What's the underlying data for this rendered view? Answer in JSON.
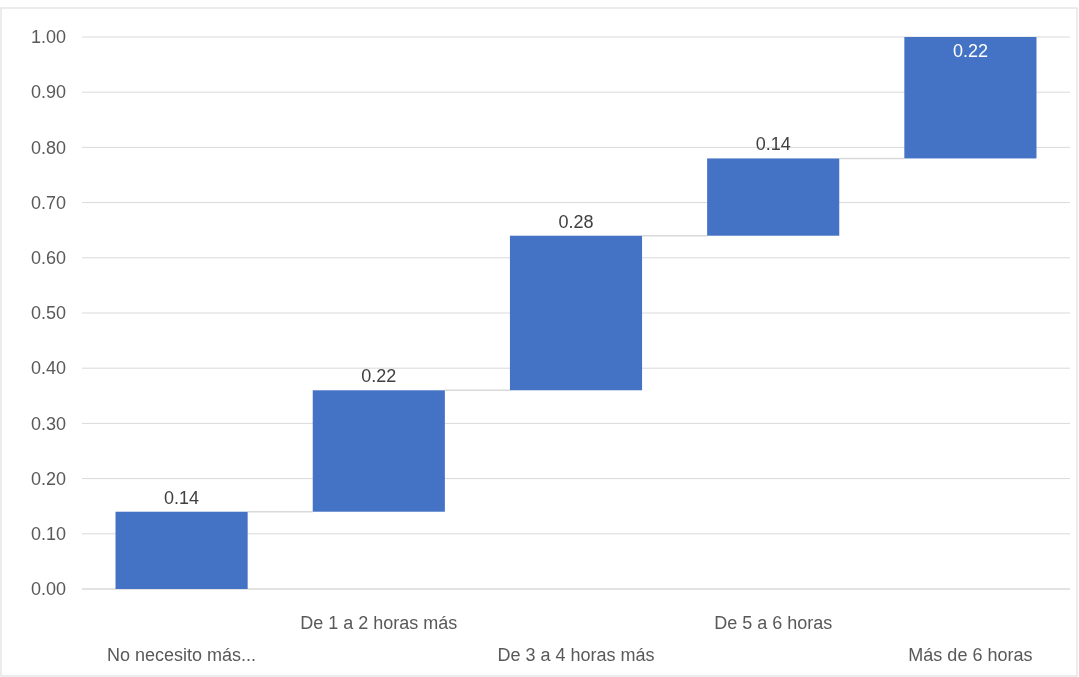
{
  "chart_data": {
    "type": "bar",
    "categories": [
      "No necesito más...",
      "De 1 a 2 horas más",
      "De 3 a 4 horas más",
      "De 5 a 6 horas",
      "Más de 6 horas"
    ],
    "values": [
      0.14,
      0.22,
      0.28,
      0.14,
      0.22
    ],
    "base": [
      0,
      0.14,
      0.36,
      0.64,
      0.78
    ],
    "color": "#4472c4",
    "ylim": [
      0,
      1
    ],
    "yticks": [
      {
        "value": 0,
        "label": "0.00"
      },
      {
        "value": 0.1,
        "label": "0.10"
      },
      {
        "value": 0.2,
        "label": "0.20"
      },
      {
        "value": 0.3,
        "label": "0.30"
      },
      {
        "value": 0.4,
        "label": "0.40"
      },
      {
        "value": 0.5,
        "label": "0.50"
      },
      {
        "value": 0.6,
        "label": "0.60"
      },
      {
        "value": 0.7,
        "label": "0.70"
      },
      {
        "value": 0.8,
        "label": "0.80"
      },
      {
        "value": 0.9,
        "label": "0.90"
      },
      {
        "value": 1,
        "label": "1.00"
      }
    ],
    "grid": "y",
    "data_labels": true
  }
}
